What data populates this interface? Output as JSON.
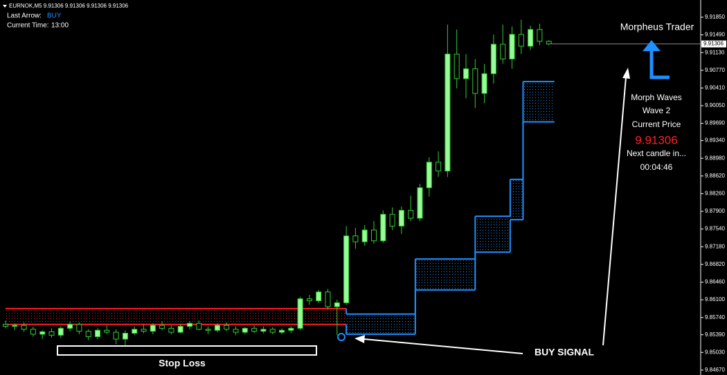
{
  "header": {
    "symbol_line": "EURNOK,M5  9.91306 9.91306 9.91306 9.91306",
    "last_arrow_label": "Last Arrow:",
    "last_arrow_value": "BUY",
    "current_time_label": "Current Time:",
    "current_time_value": "13:00"
  },
  "panel": {
    "title": "Morpheus Trader",
    "line1": "Morph Waves",
    "line2": "Wave 2",
    "line3": "Current Price",
    "price": "9.91306",
    "line4": "Next candle in...",
    "countdown": "00:04:46"
  },
  "annotations": {
    "stop_loss": "Stop Loss",
    "buy_signal": "BUY SIGNAL"
  },
  "chart_data": {
    "type": "candlestick",
    "up_color": "#98fb98",
    "down_color": "#000000",
    "wick_color": "#32cd32",
    "open": [
      9.856,
      9.8556,
      9.8558,
      9.855,
      9.854,
      9.8545,
      9.8538,
      9.8552,
      9.856,
      9.8546,
      9.8535,
      9.8548,
      9.8544,
      9.853,
      9.8542,
      9.855,
      9.8546,
      9.8558,
      9.8552,
      9.8544,
      9.8556,
      9.8562,
      9.855,
      9.8548,
      9.8558,
      9.855,
      9.8544,
      9.8552,
      9.8546,
      9.855,
      9.8544,
      9.8548,
      9.8552,
      9.8612,
      9.8608,
      9.8626,
      9.8596,
      9.8604,
      9.874,
      9.8728,
      9.8752,
      9.873,
      9.8784,
      9.876,
      9.8792,
      9.8776,
      9.8838,
      9.889,
      9.8872,
      9.911,
      9.906,
      9.908,
      9.903,
      9.907,
      9.913,
      9.91,
      9.915,
      9.9126,
      9.916,
      9.9136
    ],
    "high": [
      9.8568,
      9.8562,
      9.8564,
      9.8555,
      9.8548,
      9.8552,
      9.8556,
      9.8566,
      9.8564,
      9.855,
      9.8552,
      9.8558,
      9.855,
      9.8548,
      9.8556,
      9.856,
      9.8562,
      9.8566,
      9.8558,
      9.856,
      9.8566,
      9.8568,
      9.8556,
      9.8562,
      9.8564,
      9.8556,
      9.8554,
      9.8558,
      9.8556,
      9.8554,
      9.8552,
      9.8556,
      9.8616,
      9.862,
      9.863,
      9.8632,
      9.861,
      9.876,
      9.8756,
      9.8762,
      9.877,
      9.8792,
      9.8798,
      9.88,
      9.8822,
      9.8846,
      9.89,
      9.8912,
      9.917,
      9.916,
      9.911,
      9.91,
      9.909,
      9.915,
      9.917,
      9.9166,
      9.918,
      9.9168,
      9.9172,
      9.9138
    ],
    "low": [
      9.8552,
      9.8548,
      9.8545,
      9.8535,
      9.853,
      9.8533,
      9.8532,
      9.8546,
      9.854,
      9.8528,
      9.853,
      9.854,
      9.852,
      9.8518,
      9.8538,
      9.8542,
      9.854,
      9.8548,
      9.854,
      9.8542,
      9.855,
      9.8548,
      9.854,
      9.8544,
      9.8546,
      9.8538,
      9.854,
      9.8542,
      9.8542,
      9.854,
      9.854,
      9.8542,
      9.8548,
      9.86,
      9.8604,
      9.859,
      9.8538,
      9.86,
      9.8714,
      9.872,
      9.8724,
      9.8726,
      9.8752,
      9.8744,
      9.877,
      9.877,
      9.882,
      9.886,
      9.886,
      9.904,
      9.902,
      9.9,
      9.901,
      9.905,
      9.909,
      9.908,
      9.911,
      9.9118,
      9.9128,
      9.9128
    ],
    "close": [
      9.8556,
      9.8558,
      9.855,
      9.854,
      9.8545,
      9.8538,
      9.8552,
      9.856,
      9.8546,
      9.8535,
      9.8548,
      9.8544,
      9.853,
      9.8542,
      9.855,
      9.8546,
      9.8558,
      9.8552,
      9.8544,
      9.8556,
      9.8562,
      9.855,
      9.8548,
      9.8558,
      9.855,
      9.8544,
      9.8552,
      9.8546,
      9.855,
      9.8544,
      9.8548,
      9.8552,
      9.8612,
      9.8608,
      9.8626,
      9.8596,
      9.8604,
      9.874,
      9.8728,
      9.8752,
      9.873,
      9.8784,
      9.876,
      9.8792,
      9.8776,
      9.8838,
      9.889,
      9.8872,
      9.911,
      9.906,
      9.908,
      9.903,
      9.907,
      9.913,
      9.91,
      9.915,
      9.9126,
      9.916,
      9.9136,
      9.91306
    ],
    "bands": [
      {
        "color": "#ff2020",
        "start": 0,
        "end": 37,
        "upper": 9.8592,
        "lower": 9.856
      },
      {
        "color": "#1e90ff",
        "start": 37,
        "end": 44.5,
        "upper": 9.8581,
        "lower": 9.854
      },
      {
        "color": "#1e90ff",
        "start": 44.5,
        "end": 51,
        "upper": 9.8693,
        "lower": 9.863
      },
      {
        "color": "#1e90ff",
        "start": 51,
        "end": 54.8,
        "upper": 9.878,
        "lower": 9.8707
      },
      {
        "color": "#1e90ff",
        "start": 54.8,
        "end": 56.2,
        "upper": 9.8855,
        "lower": 9.8773
      },
      {
        "color": "#1e90ff",
        "start": 56.2,
        "end": 59.6,
        "upper": 9.9054,
        "lower": 9.8972
      }
    ],
    "current_price": 9.91306,
    "ylim": [
      9.8457,
      9.922
    ],
    "yticks": [
      {
        "value": 9.9185,
        "label": "9.91850"
      },
      {
        "value": 9.9149,
        "label": "9.91490"
      },
      {
        "value": 9.9113,
        "label": "9.91130"
      },
      {
        "value": 9.9077,
        "label": "9.90770"
      },
      {
        "value": 9.9041,
        "label": "9.90410"
      },
      {
        "value": 9.9005,
        "label": "9.90050"
      },
      {
        "value": 9.8969,
        "label": "9.89690"
      },
      {
        "value": 9.8934,
        "label": "9.89340"
      },
      {
        "value": 9.8898,
        "label": "9.88980"
      },
      {
        "value": 9.8862,
        "label": "9.88620"
      },
      {
        "value": 9.8826,
        "label": "9.88260"
      },
      {
        "value": 9.879,
        "label": "9.87900"
      },
      {
        "value": 9.8754,
        "label": "9.87540"
      },
      {
        "value": 9.8718,
        "label": "9.87180"
      },
      {
        "value": 9.8682,
        "label": "9.86820"
      },
      {
        "value": 9.8646,
        "label": "9.86460"
      },
      {
        "value": 9.861,
        "label": "9.86100"
      },
      {
        "value": 9.8574,
        "label": "9.85740"
      },
      {
        "value": 9.8539,
        "label": "9.85390"
      },
      {
        "value": 9.8503,
        "label": "9.85030"
      },
      {
        "value": 9.8467,
        "label": "9.84670"
      }
    ]
  }
}
